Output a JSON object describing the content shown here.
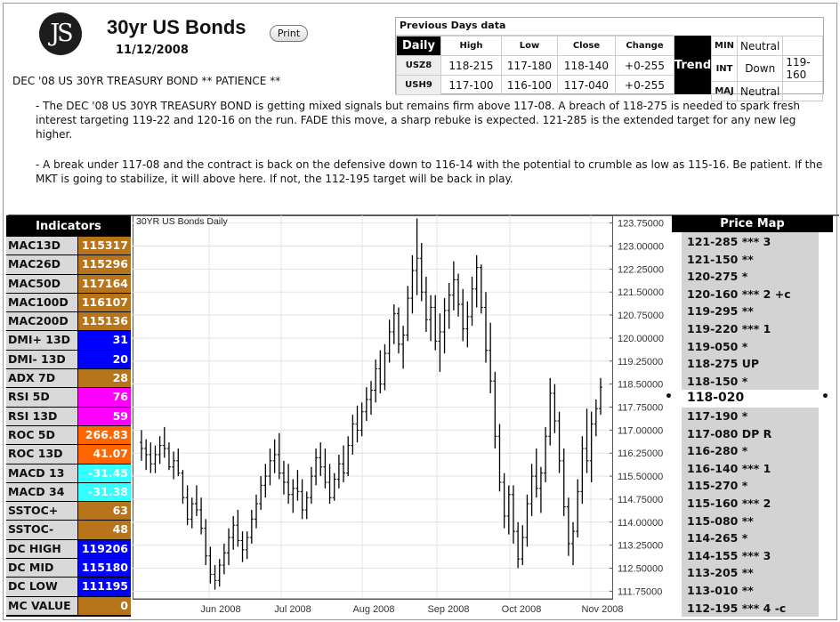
{
  "header": {
    "logo_text": "JS",
    "title": "30yr US Bonds",
    "print_label": "Print",
    "date": "11/12/2008",
    "headline": "DEC '08 US 30YR TREASURY BOND ** PATIENCE **"
  },
  "commentary": [
    "- The DEC '08 US 30YR TREASURY BOND is getting mixed signals but remains firm above 117-08. A breach of 118-275 is needed to spark fresh interest targeting 119-22 and 120-16 on the run. FADE this move, a sharp rebuke is expected. 121-285 is the extended target for any new leg higher.",
    "- A break under 117-08 and the contract is back on the defensive down to 116-14 with the potential to crumble as low as 115-16. Be patient. If the MKT is going to stabilize, it will above here. If not, the 112-195 target will be back in play."
  ],
  "previous_days": {
    "heading": "Previous Days data",
    "period_label": "Daily",
    "columns": [
      "High",
      "Low",
      "Close",
      "Change"
    ],
    "rows": [
      {
        "symbol": "USZ8",
        "high": "118-215",
        "low": "117-180",
        "close": "118-140",
        "change": "+0-255"
      },
      {
        "symbol": "USH9",
        "high": "117-100",
        "low": "116-100",
        "close": "117-040",
        "change": "+0-255"
      }
    ],
    "trend_label": "Trend",
    "trend": [
      {
        "key": "MIN",
        "value": "Neutral",
        "extra": ""
      },
      {
        "key": "INT",
        "value": "Down",
        "extra": "119-160"
      },
      {
        "key": "MAJ",
        "value": "Neutral",
        "extra": ""
      }
    ]
  },
  "indicators": {
    "heading": "Indicators",
    "items": [
      {
        "label": "MAC13D",
        "value": "115317",
        "color": "#b8741a"
      },
      {
        "label": "MAC26D",
        "value": "115296",
        "color": "#b8741a"
      },
      {
        "label": "MAC50D",
        "value": "117164",
        "color": "#b8741a"
      },
      {
        "label": "MAC100D",
        "value": "116107",
        "color": "#b8741a"
      },
      {
        "label": "MAC200D",
        "value": "115136",
        "color": "#b8741a"
      },
      {
        "label": "DMI+ 13D",
        "value": "31",
        "color": "#0000ff"
      },
      {
        "label": "DMI- 13D",
        "value": "20",
        "color": "#0000ff"
      },
      {
        "label": "ADX 7D",
        "value": "28",
        "color": "#b8741a"
      },
      {
        "label": "RSI 5D",
        "value": "76",
        "color": "#ff00ff"
      },
      {
        "label": "RSI 13D",
        "value": "59",
        "color": "#ff00ff"
      },
      {
        "label": "ROC 5D",
        "value": "266.83",
        "color": "#ff6600"
      },
      {
        "label": "ROC 13D",
        "value": "41.07",
        "color": "#ff6600"
      },
      {
        "label": "MACD 13",
        "value": "-31.45",
        "color": "#33ffff"
      },
      {
        "label": "MACD 34",
        "value": "-31.38",
        "color": "#33ffff"
      },
      {
        "label": "SSTOC+",
        "value": "63",
        "color": "#b8741a"
      },
      {
        "label": "SSTOC-",
        "value": "48",
        "color": "#b8741a"
      },
      {
        "label": "DC HIGH",
        "value": "119206",
        "color": "#0000ff"
      },
      {
        "label": "DC MID",
        "value": "115180",
        "color": "#0000ff"
      },
      {
        "label": "DC LOW",
        "value": "111195",
        "color": "#0000ff"
      },
      {
        "label": "MC VALUE",
        "value": "0",
        "color": "#b8741a"
      }
    ]
  },
  "price_map": {
    "heading": "Price Map",
    "current": "118-020",
    "items": [
      "121-285 *** 3",
      "121-150 **",
      "120-275 *",
      "120-160 *** 2 +c",
      "119-295 **",
      "119-220 *** 1",
      "119-050 *",
      "118-275 UP",
      "118-150 *",
      "118-020",
      "117-190 *",
      "117-080 DP R",
      "116-280 *",
      "116-140 *** 1",
      "115-270 *",
      "115-160 *** 2",
      "115-080 **",
      "114-265 *",
      "114-155 *** 3",
      "113-205 **",
      "113-010 **",
      "112-195 *** 4 -c"
    ]
  },
  "chart_data": {
    "type": "bar",
    "title": "30YR US Bonds Daily",
    "x_ticks": [
      "Jun 2008",
      "Jul 2008",
      "Aug 2008",
      "Sep 2008",
      "Oct 2008",
      "Nov 2008"
    ],
    "y_ticks": [
      "123.75000",
      "123.00000",
      "122.25000",
      "121.50000",
      "120.75000",
      "120.00000",
      "119.25000",
      "118.50000",
      "117.75000",
      "117.00000",
      "116.25000",
      "115.50000",
      "114.75000",
      "114.00000",
      "113.25000",
      "112.50000",
      "111.75000"
    ],
    "ylim": [
      111.5,
      124.0
    ],
    "ohlc": [
      [
        116.6,
        117.0,
        116.0,
        116.4
      ],
      [
        116.4,
        116.7,
        115.7,
        116.2
      ],
      [
        116.2,
        116.6,
        115.6,
        115.9
      ],
      [
        115.9,
        116.5,
        115.6,
        116.2
      ],
      [
        116.2,
        116.8,
        115.9,
        116.5
      ],
      [
        116.5,
        117.1,
        116.1,
        116.4
      ],
      [
        116.4,
        116.6,
        115.7,
        115.8
      ],
      [
        115.8,
        116.3,
        115.4,
        116.0
      ],
      [
        116.0,
        116.4,
        115.5,
        115.6
      ],
      [
        115.6,
        115.7,
        114.6,
        114.8
      ],
      [
        114.8,
        115.2,
        113.9,
        114.1
      ],
      [
        114.1,
        114.8,
        113.8,
        114.6
      ],
      [
        114.6,
        115.2,
        114.2,
        114.4
      ],
      [
        114.4,
        114.8,
        113.6,
        113.8
      ],
      [
        113.8,
        114.1,
        112.6,
        112.9
      ],
      [
        112.9,
        113.2,
        112.0,
        112.3
      ],
      [
        112.3,
        112.6,
        111.8,
        112.1
      ],
      [
        112.1,
        112.8,
        111.9,
        112.6
      ],
      [
        112.6,
        113.3,
        112.3,
        113.0
      ],
      [
        113.0,
        113.8,
        112.6,
        113.5
      ],
      [
        113.5,
        114.2,
        113.1,
        113.9
      ],
      [
        113.9,
        114.4,
        113.2,
        113.4
      ],
      [
        113.4,
        113.7,
        112.7,
        113.1
      ],
      [
        113.1,
        113.7,
        112.8,
        113.5
      ],
      [
        113.5,
        114.4,
        113.3,
        114.1
      ],
      [
        114.1,
        114.9,
        113.8,
        114.6
      ],
      [
        114.6,
        115.5,
        114.4,
        115.2
      ],
      [
        115.2,
        115.9,
        114.8,
        115.5
      ],
      [
        115.5,
        116.4,
        115.2,
        116.0
      ],
      [
        116.0,
        116.7,
        115.6,
        116.2
      ],
      [
        116.2,
        116.9,
        115.4,
        115.6
      ],
      [
        115.6,
        116.0,
        114.9,
        115.3
      ],
      [
        115.3,
        115.9,
        114.6,
        114.9
      ],
      [
        114.9,
        115.4,
        114.3,
        115.1
      ],
      [
        115.1,
        115.7,
        114.7,
        115.0
      ],
      [
        115.0,
        115.4,
        114.1,
        114.4
      ],
      [
        114.4,
        115.0,
        114.1,
        114.8
      ],
      [
        114.8,
        115.8,
        114.6,
        115.5
      ],
      [
        115.5,
        116.4,
        115.2,
        116.1
      ],
      [
        116.1,
        116.6,
        115.5,
        115.8
      ],
      [
        115.8,
        116.4,
        115.1,
        115.3
      ],
      [
        115.3,
        115.9,
        114.6,
        114.8
      ],
      [
        114.8,
        115.6,
        114.7,
        115.4
      ],
      [
        115.4,
        116.2,
        115.1,
        115.9
      ],
      [
        115.9,
        116.5,
        115.3,
        115.6
      ],
      [
        115.6,
        116.8,
        115.5,
        116.5
      ],
      [
        116.5,
        117.5,
        116.2,
        117.2
      ],
      [
        117.2,
        117.8,
        116.6,
        117.0
      ],
      [
        117.0,
        117.9,
        116.8,
        117.6
      ],
      [
        117.6,
        118.4,
        117.3,
        118.0
      ],
      [
        118.0,
        118.6,
        117.5,
        118.3
      ],
      [
        118.3,
        119.3,
        117.9,
        119.0
      ],
      [
        119.0,
        119.6,
        118.2,
        118.5
      ],
      [
        118.5,
        119.8,
        118.3,
        119.5
      ],
      [
        119.5,
        120.6,
        119.2,
        120.2
      ],
      [
        120.2,
        121.1,
        119.8,
        120.8
      ],
      [
        120.8,
        121.0,
        119.5,
        119.8
      ],
      [
        119.8,
        120.4,
        119.0,
        120.1
      ],
      [
        120.1,
        121.7,
        119.9,
        121.3
      ],
      [
        121.3,
        122.7,
        120.8,
        122.2
      ],
      [
        122.2,
        123.9,
        121.4,
        122.6
      ],
      [
        122.6,
        123.1,
        121.2,
        121.5
      ],
      [
        121.5,
        122.0,
        120.2,
        120.6
      ],
      [
        120.6,
        121.4,
        119.9,
        121.0
      ],
      [
        121.0,
        121.4,
        119.6,
        119.9
      ],
      [
        119.9,
        120.8,
        118.9,
        120.2
      ],
      [
        120.2,
        121.3,
        119.5,
        120.9
      ],
      [
        120.9,
        121.8,
        120.3,
        121.4
      ],
      [
        121.4,
        122.5,
        120.9,
        121.9
      ],
      [
        121.9,
        122.1,
        120.7,
        121.1
      ],
      [
        121.1,
        121.6,
        119.9,
        120.3
      ],
      [
        120.3,
        121.2,
        119.7,
        120.7
      ],
      [
        120.7,
        122.0,
        120.4,
        121.6
      ],
      [
        121.6,
        122.7,
        121.0,
        122.3
      ],
      [
        122.3,
        122.4,
        120.8,
        121.0
      ],
      [
        121.0,
        121.5,
        119.2,
        119.6
      ],
      [
        119.6,
        120.5,
        118.2,
        118.6
      ],
      [
        118.6,
        118.9,
        116.4,
        116.8
      ],
      [
        116.8,
        117.2,
        115.0,
        115.3
      ],
      [
        115.3,
        115.6,
        113.8,
        114.2
      ],
      [
        114.2,
        115.2,
        113.6,
        114.9
      ],
      [
        114.9,
        115.2,
        113.3,
        113.7
      ],
      [
        113.7,
        114.0,
        112.5,
        112.8
      ],
      [
        112.8,
        113.9,
        112.6,
        113.5
      ],
      [
        113.5,
        114.9,
        113.2,
        114.6
      ],
      [
        114.6,
        115.9,
        114.2,
        115.5
      ],
      [
        115.5,
        116.4,
        114.8,
        115.1
      ],
      [
        115.1,
        115.8,
        114.3,
        115.6
      ],
      [
        115.6,
        117.1,
        115.3,
        116.8
      ],
      [
        116.8,
        118.7,
        116.5,
        118.2
      ],
      [
        118.2,
        118.5,
        116.9,
        117.3
      ],
      [
        117.3,
        117.6,
        115.6,
        116.0
      ],
      [
        116.0,
        116.4,
        114.2,
        114.5
      ],
      [
        114.5,
        114.8,
        112.9,
        113.3
      ],
      [
        113.3,
        114.0,
        112.6,
        113.7
      ],
      [
        113.7,
        115.4,
        113.5,
        115.0
      ],
      [
        115.0,
        116.8,
        114.6,
        116.4
      ],
      [
        116.4,
        117.7,
        115.6,
        116.0
      ],
      [
        116.0,
        117.6,
        115.3,
        117.2
      ],
      [
        117.2,
        118.0,
        116.8,
        117.7
      ],
      [
        117.7,
        118.7,
        117.5,
        118.4
      ]
    ]
  }
}
